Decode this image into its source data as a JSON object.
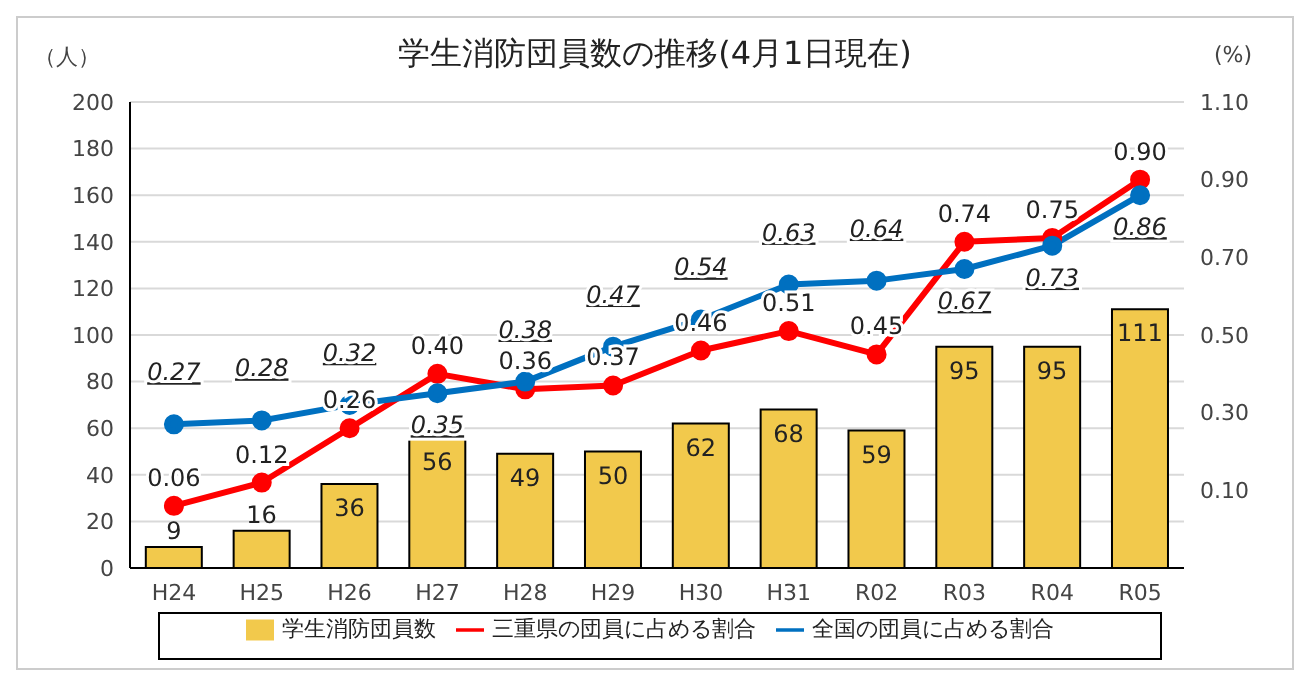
{
  "chart_data": {
    "type": "bar",
    "title": "学生消防団員数の推移(4月1日現在)",
    "ylabel": "（人）",
    "y2label": "(%)",
    "categories": [
      "H24",
      "H25",
      "H26",
      "H27",
      "H28",
      "H29",
      "H30",
      "H31",
      "R02",
      "R03",
      "R04",
      "R05"
    ],
    "series": [
      {
        "name": "学生消防団員数",
        "color": "#f2c94c",
        "values": [
          9,
          16,
          36,
          56,
          49,
          50,
          62,
          68,
          59,
          95,
          95,
          111
        ]
      },
      {
        "name": "三重県の団員に占める割合",
        "type": "line",
        "axis": "y2",
        "color": "#ff0000",
        "values": [
          0.06,
          0.12,
          0.26,
          0.4,
          0.36,
          0.37,
          0.46,
          0.51,
          0.45,
          0.74,
          0.75,
          0.9
        ],
        "value_labels": [
          "0.06",
          "0.12",
          "0.26",
          "0.40",
          "0.36",
          "0.37",
          "0.46",
          "0.51",
          "0.45",
          "0.74",
          "0.75",
          "0.90"
        ]
      },
      {
        "name": "全国の団員に占める割合",
        "type": "line",
        "axis": "y2",
        "color": "#0070c0",
        "values": [
          0.27,
          0.28,
          0.32,
          0.35,
          0.38,
          0.47,
          0.54,
          0.63,
          0.64,
          0.67,
          0.73,
          0.86
        ],
        "value_labels": [
          "0.27",
          "0.28",
          "0.32",
          "0.35",
          "0.38",
          "0.47",
          "0.54",
          "0.63",
          "0.64",
          "0.67",
          "0.73",
          "0.86"
        ]
      }
    ],
    "ylim": [
      0,
      200
    ],
    "yticks": [
      0,
      20,
      40,
      60,
      80,
      100,
      120,
      140,
      160,
      180,
      200
    ],
    "y2lim": [
      -0.1,
      1.1
    ],
    "y2ticks": [
      {
        "value": -0.1,
        "label": null
      },
      {
        "value": 0.1,
        "label": "0.10"
      },
      {
        "value": 0.3,
        "label": "0.30"
      },
      {
        "value": 0.5,
        "label": "0.50"
      },
      {
        "value": 0.7,
        "label": "0.70"
      },
      {
        "value": 0.9,
        "label": "0.90"
      },
      {
        "value": 1.1,
        "label": "1.10"
      }
    ],
    "grid": "y",
    "legend": "bottom",
    "marker": "circle",
    "line_style": "solid",
    "data_labels": true
  }
}
